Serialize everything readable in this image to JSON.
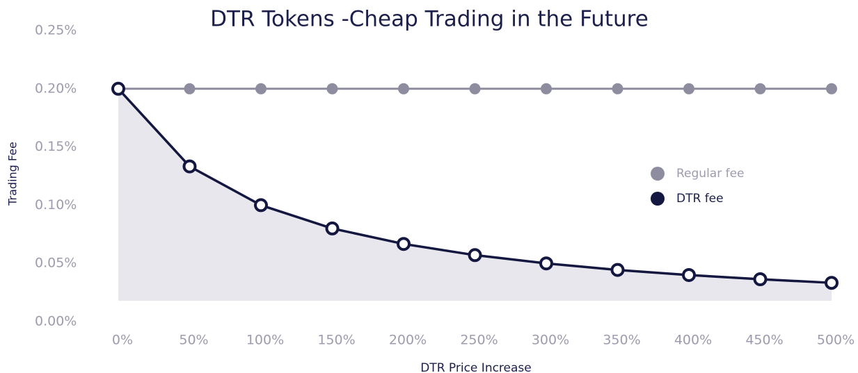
{
  "chart_data": {
    "type": "line",
    "title": "DTR Tokens -Cheap Trading in the Future",
    "x_label": "DTR Price Increase",
    "y_label": "Trading Fee",
    "categories": [
      "0%",
      "50%",
      "100%",
      "150%",
      "200%",
      "250%",
      "300%",
      "350%",
      "400%",
      "450%",
      "500%"
    ],
    "series": [
      {
        "name": "Regular fee",
        "color": "#8e8d9f",
        "values": [
          0.2,
          0.2,
          0.2,
          0.2,
          0.2,
          0.2,
          0.2,
          0.2,
          0.2,
          0.2,
          0.2
        ]
      },
      {
        "name": "DTR fee",
        "color": "#14173f",
        "values": [
          0.2,
          0.1333,
          0.1,
          0.08,
          0.0667,
          0.0571,
          0.05,
          0.0444,
          0.04,
          0.0364,
          0.0333
        ]
      }
    ],
    "ylim": [
      0,
      0.25
    ],
    "yticks": [
      {
        "value": 0,
        "label": "0.00%"
      },
      {
        "value": 0.05,
        "label": "0.05%"
      },
      {
        "value": 0.1,
        "label": "0.10%"
      },
      {
        "value": 0.15,
        "label": "0.15%"
      },
      {
        "value": 0.2,
        "label": "0.20%"
      },
      {
        "value": 0.25,
        "label": "0.25%"
      }
    ],
    "grid": false,
    "legend": "right"
  }
}
